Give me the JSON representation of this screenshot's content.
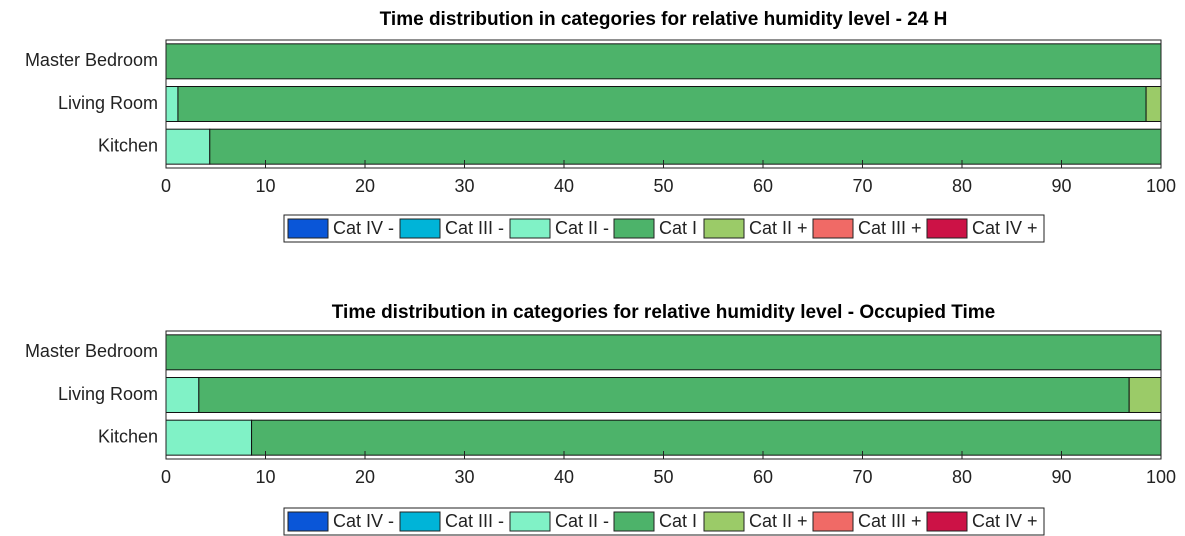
{
  "chart_data": [
    {
      "type": "stacked-barh",
      "title": "Time distribution in categories for relative humidity level - 24 H",
      "categories": [
        "Master Bedroom",
        "Living Room",
        "Kitchen"
      ],
      "series": [
        {
          "name": "Cat IV -",
          "color": "#0a56d8",
          "values": [
            0,
            0,
            0
          ]
        },
        {
          "name": "Cat III -",
          "color": "#00b4d8",
          "values": [
            0,
            0,
            0
          ]
        },
        {
          "name": "Cat II -",
          "color": "#80f2c6",
          "values": [
            0,
            1.2,
            4.4
          ]
        },
        {
          "name": "Cat I",
          "color": "#4db36a",
          "values": [
            100,
            97.3,
            95.6
          ]
        },
        {
          "name": "Cat II +",
          "color": "#9bcb68",
          "values": [
            0,
            1.5,
            0
          ]
        },
        {
          "name": "Cat III +",
          "color": "#f06a66",
          "values": [
            0,
            0,
            0
          ]
        },
        {
          "name": "Cat IV +",
          "color": "#cc1246",
          "values": [
            0,
            0,
            0
          ]
        }
      ],
      "xlim": [
        0,
        100
      ],
      "xticks": [
        0,
        10,
        20,
        30,
        40,
        50,
        60,
        70,
        80,
        90,
        100
      ],
      "legend": "bottom"
    },
    {
      "type": "stacked-barh",
      "title": "Time distribution in categories for relative humidity level - Occupied Time",
      "categories": [
        "Master Bedroom",
        "Living Room",
        "Kitchen"
      ],
      "series": [
        {
          "name": "Cat IV -",
          "color": "#0a56d8",
          "values": [
            0,
            0,
            0
          ]
        },
        {
          "name": "Cat III -",
          "color": "#00b4d8",
          "values": [
            0,
            0,
            0
          ]
        },
        {
          "name": "Cat II -",
          "color": "#80f2c6",
          "values": [
            0,
            3.3,
            8.6
          ]
        },
        {
          "name": "Cat I",
          "color": "#4db36a",
          "values": [
            100,
            93.5,
            91.4
          ]
        },
        {
          "name": "Cat II +",
          "color": "#9bcb68",
          "values": [
            0,
            3.2,
            0
          ]
        },
        {
          "name": "Cat III +",
          "color": "#f06a66",
          "values": [
            0,
            0,
            0
          ]
        },
        {
          "name": "Cat IV +",
          "color": "#cc1246",
          "values": [
            0,
            0,
            0
          ]
        }
      ],
      "xlim": [
        0,
        100
      ],
      "xticks": [
        0,
        10,
        20,
        30,
        40,
        50,
        60,
        70,
        80,
        90,
        100
      ],
      "legend": "bottom"
    }
  ]
}
